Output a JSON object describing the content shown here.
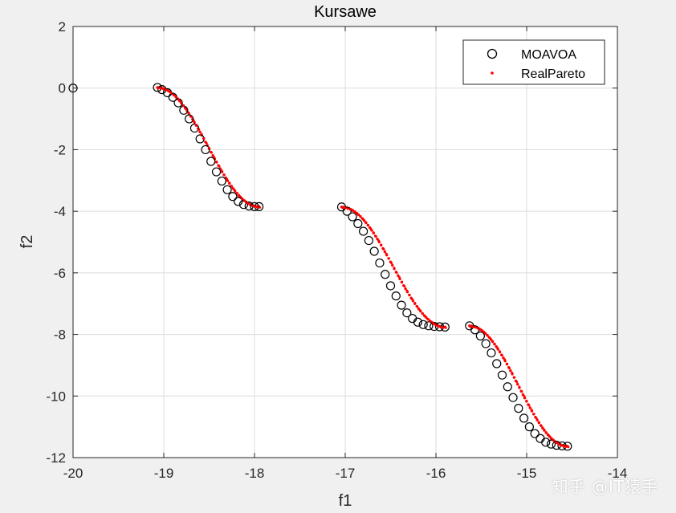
{
  "chart_data": {
    "type": "scatter",
    "title": "Kursawe",
    "xlabel": "f1",
    "ylabel": "f2",
    "xlim": [
      -20,
      -14
    ],
    "ylim": [
      -12,
      2
    ],
    "xticks": [
      -20,
      -19,
      -18,
      -17,
      -16,
      -15,
      -14
    ],
    "yticks": [
      -12,
      -10,
      -8,
      -6,
      -4,
      -2,
      0,
      2
    ],
    "xtick_labels": [
      "-20",
      "-19",
      "-18",
      "-17",
      "-16",
      "-15",
      "-14"
    ],
    "ytick_labels": [
      "-12",
      "-10",
      "-8",
      "-6",
      "-4",
      "-2",
      "0",
      "2"
    ],
    "grid": true,
    "legend_position": "top-right",
    "colors": {
      "moavoa": "#000000",
      "realpareto": "#ff0000",
      "grid": "#dcdcdc"
    },
    "series": [
      {
        "name": "MOAVOA",
        "marker": "circle",
        "x": [
          -20.0,
          -19.07,
          -19.02,
          -18.96,
          -18.9,
          -18.84,
          -18.78,
          -18.72,
          -18.66,
          -18.6,
          -18.54,
          -18.48,
          -18.42,
          -18.36,
          -18.3,
          -18.24,
          -18.18,
          -18.12,
          -18.06,
          -18.0,
          -17.95,
          -17.04,
          -16.98,
          -16.92,
          -16.86,
          -16.8,
          -16.74,
          -16.68,
          -16.62,
          -16.56,
          -16.5,
          -16.44,
          -16.38,
          -16.32,
          -16.26,
          -16.2,
          -16.14,
          -16.08,
          -16.02,
          -15.96,
          -15.9,
          -15.63,
          -15.57,
          -15.51,
          -15.45,
          -15.39,
          -15.33,
          -15.27,
          -15.21,
          -15.15,
          -15.09,
          -15.03,
          -14.97,
          -14.91,
          -14.85,
          -14.79,
          -14.73,
          -14.67,
          -14.61,
          -14.55
        ],
        "y": [
          0.0,
          0.02,
          -0.05,
          -0.15,
          -0.3,
          -0.48,
          -0.72,
          -1.0,
          -1.3,
          -1.65,
          -2.0,
          -2.38,
          -2.72,
          -3.02,
          -3.3,
          -3.52,
          -3.68,
          -3.78,
          -3.83,
          -3.85,
          -3.85,
          -3.86,
          -4.0,
          -4.18,
          -4.4,
          -4.65,
          -4.95,
          -5.3,
          -5.68,
          -6.05,
          -6.42,
          -6.75,
          -7.05,
          -7.3,
          -7.48,
          -7.6,
          -7.68,
          -7.72,
          -7.74,
          -7.75,
          -7.76,
          -7.72,
          -7.85,
          -8.05,
          -8.3,
          -8.6,
          -8.95,
          -9.32,
          -9.7,
          -10.05,
          -10.4,
          -10.72,
          -11.0,
          -11.22,
          -11.38,
          -11.5,
          -11.56,
          -11.6,
          -11.62,
          -11.63
        ]
      },
      {
        "name": "RealPareto",
        "marker": "dot",
        "segments": [
          {
            "x_start": -19.07,
            "x_end": -17.95,
            "y_start": 0.02,
            "y_end": -3.85
          },
          {
            "x_start": -17.04,
            "x_end": -15.9,
            "y_start": -3.86,
            "y_end": -7.76
          },
          {
            "x_start": -15.63,
            "x_end": -14.55,
            "y_start": -7.72,
            "y_end": -11.63
          }
        ]
      }
    ]
  },
  "watermark": "知乎 @IT猿手"
}
